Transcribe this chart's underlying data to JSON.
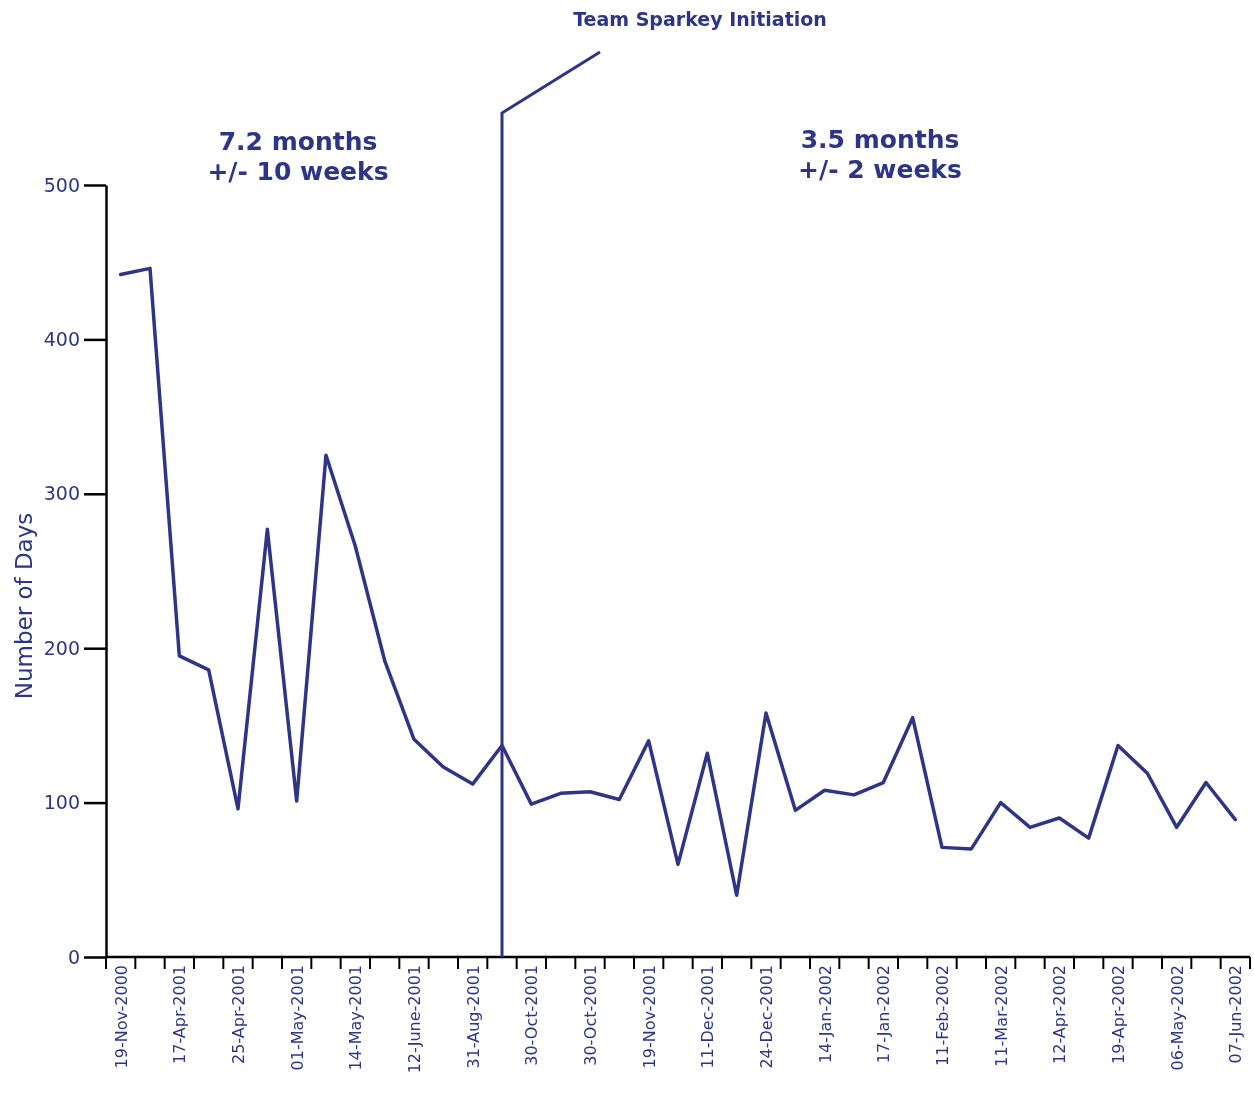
{
  "chart_data": {
    "type": "line",
    "ylabel": "Number of Days",
    "categories": [
      "19-Nov-2000",
      null,
      "17-Apr-2001",
      null,
      "25-Apr-2001",
      null,
      "01-May-2001",
      null,
      "14-May-2001",
      null,
      "12-June-2001",
      null,
      "31-Aug-2001",
      null,
      "30-Oct-2001",
      null,
      "30-Oct-2001",
      null,
      "19-Nov-2001",
      null,
      "11-Dec-2001",
      null,
      "24-Dec-2001",
      null,
      "14-Jan-2002",
      null,
      "17-Jan-2002",
      null,
      "11-Feb-2002",
      null,
      "11-Mar-2002",
      null,
      "12-Apr-2002",
      null,
      "19-Apr-2002",
      null,
      "06-May-2002",
      null,
      "07-Jun-2002"
    ],
    "series": [
      {
        "color": "#2e3586",
        "values": [
          442,
          446,
          195,
          186,
          96,
          277,
          101,
          325,
          266,
          192,
          141,
          123,
          112,
          137,
          99,
          106,
          107,
          102,
          140,
          60,
          132,
          40,
          158,
          95,
          108,
          105,
          113,
          155,
          71,
          70,
          100,
          84,
          90,
          77,
          137,
          119,
          84,
          113,
          89
        ]
      }
    ],
    "ylim": [
      0,
      500
    ],
    "yticks": [
      0,
      100,
      200,
      300,
      400,
      500
    ],
    "grid": false,
    "marker": "none",
    "line_style": "solid",
    "annotations": [
      "7.2 months\n+/- 10 weeks",
      "3.5 months\n+/- 2 weeks",
      "Team Sparkey Initiation"
    ]
  }
}
